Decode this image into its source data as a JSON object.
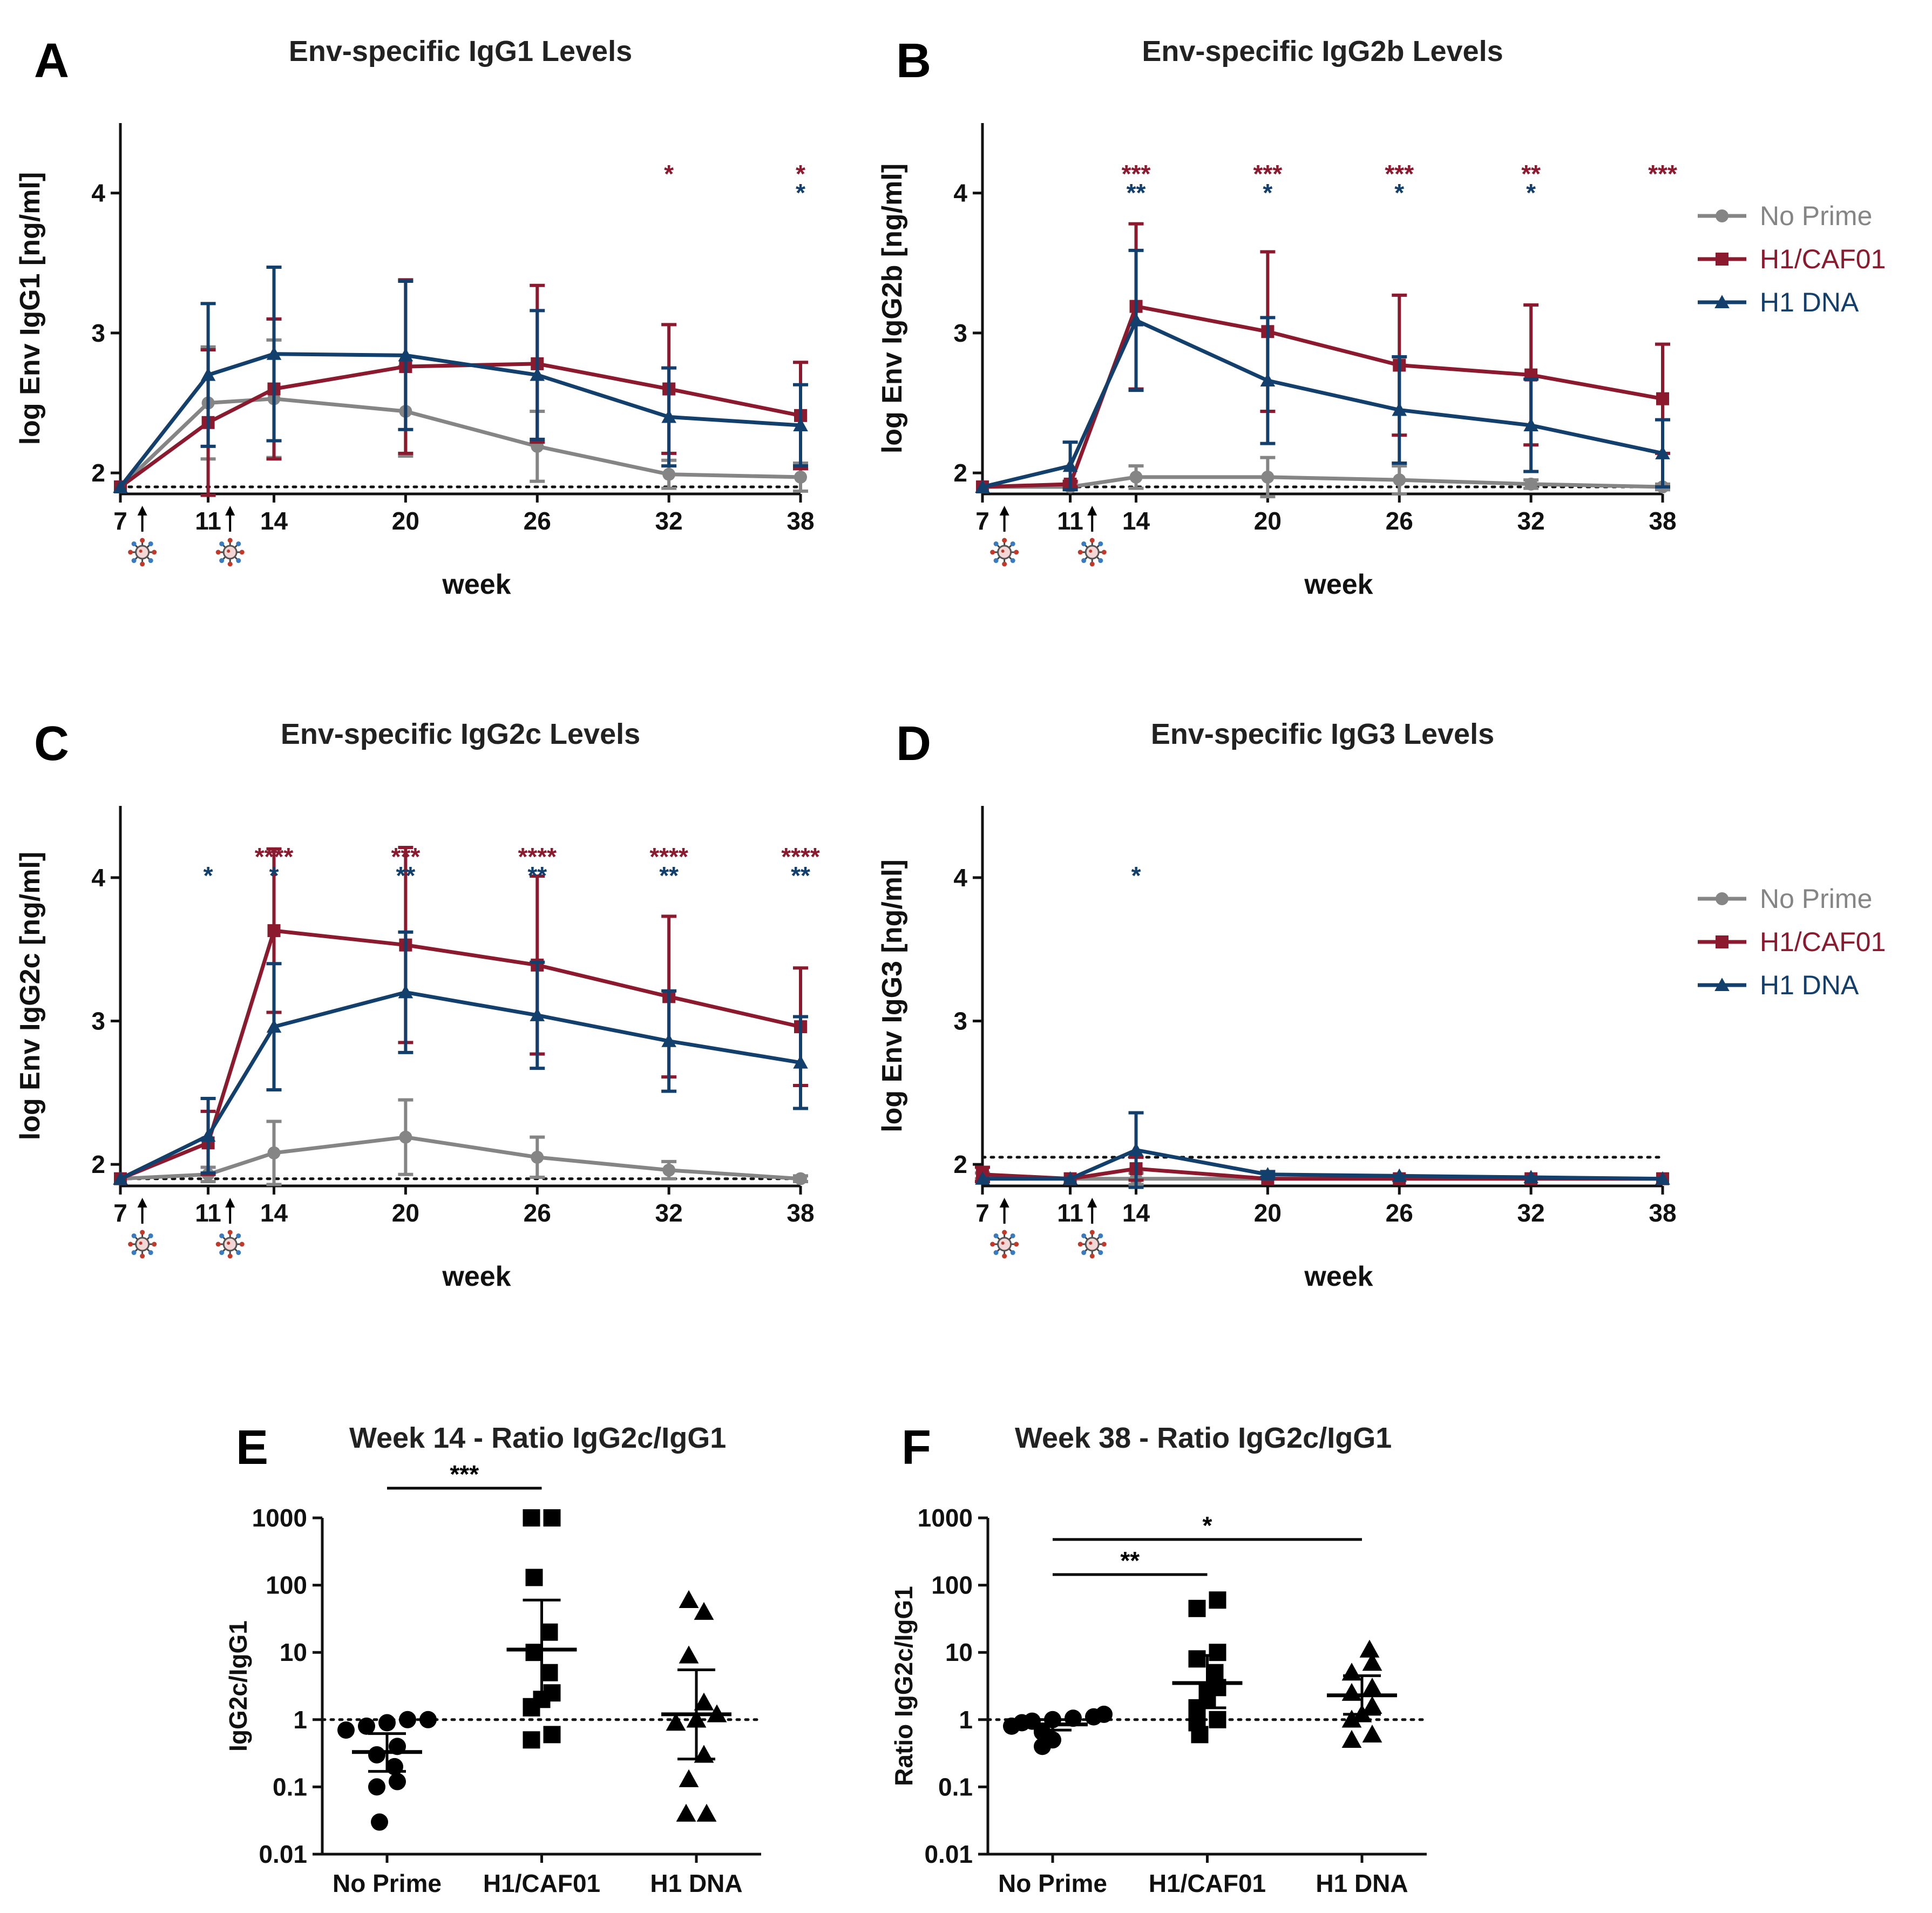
{
  "colors": {
    "no_prime": "#858585",
    "h1_caf01": "#8b1a2f",
    "h1_dna": "#123f6b",
    "axis": "#111111"
  },
  "legend": [
    "No Prime",
    "H1/CAF01",
    "H1 DNA"
  ],
  "chart_data": [
    {
      "panel": "A",
      "type": "line",
      "title": "Env-specific IgG1 Levels",
      "xlabel": "week",
      "ylabel": "log Env IgG1 [ng/ml]",
      "x": [
        7,
        11,
        14,
        20,
        26,
        32,
        38
      ],
      "xticks": [
        "7",
        "11",
        "14",
        "20",
        "26",
        "32",
        "38"
      ],
      "ylim": [
        1.85,
        4.5
      ],
      "yticks": [
        2,
        3,
        4
      ],
      "baseline": 1.9,
      "immunization_weeks": [
        8,
        12
      ],
      "legend": false,
      "series": [
        {
          "name": "No Prime",
          "values": [
            1.9,
            2.5,
            2.53,
            2.44,
            2.19,
            1.99,
            1.97
          ],
          "err": [
            0,
            0.4,
            0.42,
            0.32,
            0.25,
            0.1,
            0.1
          ]
        },
        {
          "name": "H1/CAF01",
          "values": [
            1.9,
            2.36,
            2.6,
            2.76,
            2.78,
            2.6,
            2.41
          ],
          "err": [
            0,
            0.52,
            0.5,
            0.62,
            0.56,
            0.46,
            0.38
          ]
        },
        {
          "name": "H1 DNA",
          "values": [
            1.9,
            2.7,
            2.85,
            2.84,
            2.7,
            2.4,
            2.34
          ],
          "err": [
            0,
            0.51,
            0.62,
            0.53,
            0.46,
            0.35,
            0.29
          ]
        }
      ],
      "significance": [
        {
          "x": 32,
          "series": "H1/CAF01",
          "label": "*"
        },
        {
          "x": 38,
          "series": "H1/CAF01",
          "label": "*"
        },
        {
          "x": 38,
          "series": "H1 DNA",
          "label": "*"
        }
      ]
    },
    {
      "panel": "B",
      "type": "line",
      "title": "Env-specific IgG2b Levels",
      "xlabel": "week",
      "ylabel": "log Env IgG2b [ng/ml]",
      "x": [
        7,
        11,
        14,
        20,
        26,
        32,
        38
      ],
      "xticks": [
        "7",
        "11",
        "14",
        "20",
        "26",
        "32",
        "38"
      ],
      "ylim": [
        1.85,
        4.5
      ],
      "yticks": [
        2,
        3,
        4
      ],
      "baseline": 1.9,
      "immunization_weeks": [
        8,
        12
      ],
      "legend": true,
      "series": [
        {
          "name": "No Prime",
          "values": [
            1.9,
            1.9,
            1.97,
            1.97,
            1.95,
            1.92,
            1.9
          ],
          "err": [
            0,
            0.02,
            0.08,
            0.14,
            0.1,
            0.03,
            0.02
          ]
        },
        {
          "name": "H1/CAF01",
          "values": [
            1.9,
            1.92,
            3.19,
            3.01,
            2.77,
            2.7,
            2.53
          ],
          "err": [
            0,
            0.02,
            0.59,
            0.57,
            0.5,
            0.5,
            0.39
          ]
        },
        {
          "name": "H1 DNA",
          "values": [
            1.9,
            2.05,
            3.09,
            2.66,
            2.45,
            2.34,
            2.14
          ],
          "err": [
            0,
            0.17,
            0.5,
            0.45,
            0.38,
            0.33,
            0.24
          ]
        }
      ],
      "significance": [
        {
          "x": 14,
          "series": "H1/CAF01",
          "label": "***"
        },
        {
          "x": 20,
          "series": "H1/CAF01",
          "label": "***"
        },
        {
          "x": 26,
          "series": "H1/CAF01",
          "label": "***"
        },
        {
          "x": 32,
          "series": "H1/CAF01",
          "label": "**"
        },
        {
          "x": 38,
          "series": "H1/CAF01",
          "label": "***"
        },
        {
          "x": 14,
          "series": "H1 DNA",
          "label": "**"
        },
        {
          "x": 20,
          "series": "H1 DNA",
          "label": "*"
        },
        {
          "x": 26,
          "series": "H1 DNA",
          "label": "*"
        },
        {
          "x": 32,
          "series": "H1 DNA",
          "label": "*"
        }
      ]
    },
    {
      "panel": "C",
      "type": "line",
      "title": "Env-specific IgG2c Levels",
      "xlabel": "week",
      "ylabel": "log Env IgG2c [ng/ml]",
      "x": [
        7,
        11,
        14,
        20,
        26,
        32,
        38
      ],
      "xticks": [
        "7",
        "11",
        "14",
        "20",
        "26",
        "32",
        "38"
      ],
      "ylim": [
        1.85,
        4.5
      ],
      "yticks": [
        2,
        3,
        4
      ],
      "baseline": 1.9,
      "immunization_weeks": [
        8,
        12
      ],
      "legend": false,
      "series": [
        {
          "name": "No Prime",
          "values": [
            1.9,
            1.93,
            2.08,
            2.19,
            2.05,
            1.96,
            1.9
          ],
          "err": [
            0,
            0.05,
            0.22,
            0.26,
            0.14,
            0.06,
            0.02
          ]
        },
        {
          "name": "H1/CAF01",
          "values": [
            1.9,
            2.15,
            3.63,
            3.53,
            3.39,
            3.17,
            2.96
          ],
          "err": [
            0,
            0.22,
            0.57,
            0.68,
            0.62,
            0.56,
            0.41
          ]
        },
        {
          "name": "H1 DNA",
          "values": [
            1.9,
            2.2,
            2.96,
            3.2,
            3.04,
            2.86,
            2.71
          ],
          "err": [
            0,
            0.26,
            0.44,
            0.42,
            0.37,
            0.35,
            0.32
          ]
        }
      ],
      "significance": [
        {
          "x": 14,
          "series": "H1/CAF01",
          "label": "****"
        },
        {
          "x": 20,
          "series": "H1/CAF01",
          "label": "***"
        },
        {
          "x": 26,
          "series": "H1/CAF01",
          "label": "****"
        },
        {
          "x": 32,
          "series": "H1/CAF01",
          "label": "****"
        },
        {
          "x": 38,
          "series": "H1/CAF01",
          "label": "****"
        },
        {
          "x": 11,
          "series": "H1 DNA",
          "label": "*"
        },
        {
          "x": 14,
          "series": "H1 DNA",
          "label": "*"
        },
        {
          "x": 20,
          "series": "H1 DNA",
          "label": "**"
        },
        {
          "x": 26,
          "series": "H1 DNA",
          "label": "**"
        },
        {
          "x": 32,
          "series": "H1 DNA",
          "label": "**"
        },
        {
          "x": 38,
          "series": "H1 DNA",
          "label": "**"
        }
      ]
    },
    {
      "panel": "D",
      "type": "line",
      "title": "Env-specific IgG3 Levels",
      "xlabel": "week",
      "ylabel": "log Env IgG3 [ng/ml]",
      "x": [
        7,
        11,
        14,
        20,
        26,
        32,
        38
      ],
      "xticks": [
        "7",
        "11",
        "14",
        "20",
        "26",
        "32",
        "38"
      ],
      "ylim": [
        1.85,
        4.5
      ],
      "yticks": [
        2,
        3,
        4
      ],
      "baseline": 2.05,
      "immunization_weeks": [
        8,
        12
      ],
      "legend": true,
      "series": [
        {
          "name": "No Prime",
          "values": [
            1.92,
            1.9,
            1.9,
            1.9,
            1.9,
            1.9,
            1.9
          ],
          "err": [
            0.02,
            0.01,
            0.04,
            0.01,
            0.01,
            0.01,
            0.01
          ]
        },
        {
          "name": "H1/CAF01",
          "values": [
            1.93,
            1.9,
            1.97,
            1.9,
            1.9,
            1.9,
            1.9
          ],
          "err": [
            0.05,
            0.01,
            0.08,
            0.01,
            0.01,
            0.01,
            0.01
          ]
        },
        {
          "name": "H1 DNA",
          "values": [
            1.9,
            1.9,
            2.1,
            1.93,
            1.92,
            1.91,
            1.9
          ],
          "err": [
            0,
            0.01,
            0.26,
            0.02,
            0.01,
            0.01,
            0.01
          ]
        }
      ],
      "significance": [
        {
          "x": 14,
          "series": "H1 DNA",
          "label": "*"
        }
      ]
    },
    {
      "panel": "E",
      "type": "scatter",
      "title": "Week 14 - Ratio IgG2c/IgG1",
      "xlabel": "",
      "ylabel": "IgG2c/IgG1",
      "yscale": "log",
      "ylim": [
        0.01,
        1000
      ],
      "yticks": [
        "0.01",
        "0.1",
        "1",
        "10",
        "100",
        "1000"
      ],
      "categories": [
        "No Prime",
        "H1/CAF01",
        "H1 DNA"
      ],
      "reference": 1,
      "groups": [
        {
          "name": "No Prime",
          "marker": "circle",
          "points": [
            0.03,
            0.1,
            0.12,
            0.2,
            0.3,
            0.4,
            0.7,
            0.8,
            0.9,
            1.0,
            1.0
          ],
          "mean": 0.33,
          "ci": [
            0.17,
            0.62
          ]
        },
        {
          "name": "H1/CAF01",
          "marker": "square",
          "points": [
            0.5,
            0.6,
            1.5,
            2,
            2.5,
            5,
            10,
            20,
            130,
            1000,
            1000
          ],
          "mean": 11,
          "ci": [
            2,
            60
          ]
        },
        {
          "name": "H1 DNA",
          "marker": "triangle",
          "points": [
            0.04,
            0.04,
            0.13,
            0.3,
            0.9,
            1.0,
            1.2,
            1.8,
            9,
            40,
            60
          ],
          "mean": 1.2,
          "ci": [
            0.26,
            5.5
          ]
        }
      ],
      "significance": [
        {
          "from": "No Prime",
          "to": "H1/CAF01",
          "label": "***"
        }
      ]
    },
    {
      "panel": "F",
      "type": "scatter",
      "title": "Week 38 - Ratio IgG2c/IgG1",
      "xlabel": "",
      "ylabel": "Ratio IgG2c/IgG1",
      "yscale": "log",
      "ylim": [
        0.01,
        1000
      ],
      "yticks": [
        "0.01",
        "0.1",
        "1",
        "10",
        "100",
        "1000"
      ],
      "categories": [
        "No Prime",
        "H1/CAF01",
        "H1 DNA"
      ],
      "reference": 1,
      "groups": [
        {
          "name": "No Prime",
          "marker": "circle",
          "points": [
            0.4,
            0.5,
            0.65,
            0.8,
            0.9,
            0.95,
            1.0,
            1.05,
            1.1,
            1.2
          ],
          "mean": 0.85,
          "ci": [
            0.7,
            1.0
          ]
        },
        {
          "name": "H1/CAF01",
          "marker": "square",
          "points": [
            0.6,
            0.9,
            1.0,
            1.5,
            2,
            2.5,
            3,
            5,
            8,
            10,
            45,
            60
          ],
          "mean": 3.5,
          "ci": [
            1.5,
            9
          ]
        },
        {
          "name": "H1 DNA",
          "marker": "triangle",
          "points": [
            0.5,
            0.6,
            1.0,
            1.2,
            1.6,
            2.5,
            3,
            5,
            7,
            11
          ],
          "mean": 2.3,
          "ci": [
            1.2,
            4.5
          ]
        }
      ],
      "significance": [
        {
          "from": "No Prime",
          "to": "H1/CAF01",
          "label": "**"
        },
        {
          "from": "No Prime",
          "to": "H1 DNA",
          "label": "*"
        }
      ]
    }
  ]
}
